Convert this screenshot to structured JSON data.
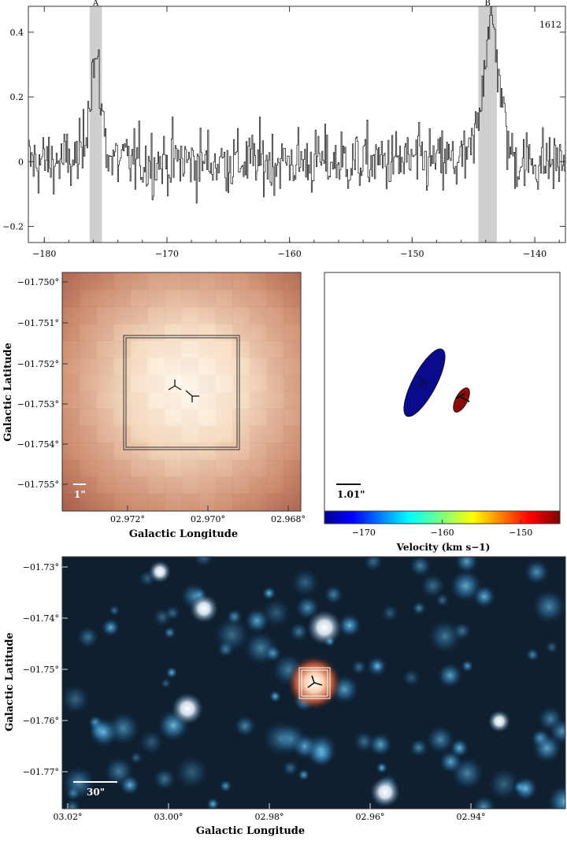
{
  "chart_data": [
    {
      "type": "line",
      "panel": "spectrum",
      "x_ticks": [
        -180,
        -170,
        -160,
        -150,
        -140
      ],
      "y_ticks": [
        0.4,
        0.2,
        0,
        -0.2
      ],
      "xlim": [
        -181.3,
        -137.5
      ],
      "ylim": [
        -0.25,
        0.48
      ],
      "corner_label": "1612",
      "highlights": [
        {
          "label": "A",
          "x_range": [
            -176.3,
            -175.3
          ]
        },
        {
          "label": "B",
          "x_range": [
            -144.6,
            -143.1
          ]
        }
      ],
      "baseline_noise_rms": 0.05,
      "features": [
        {
          "center": -175.9,
          "peak": 0.31,
          "width": 0.5
        },
        {
          "center": -143.6,
          "peak": 0.42,
          "width": 0.7
        }
      ]
    },
    {
      "type": "heatmap",
      "panel": "zoom",
      "xlabel": "Galactic Longitude",
      "ylabel": "Galactic Latitude",
      "x_ticks": [
        "02.972°",
        "02.970°",
        "02.968°"
      ],
      "y_ticks": [
        "−01.750°",
        "−01.751°",
        "−01.752°",
        "−01.753°",
        "−01.754°",
        "−01.755°"
      ],
      "scalebar": "1\""
    },
    {
      "type": "scatter",
      "panel": "velocity",
      "colorbar_label": "Velocity (km s−1)",
      "colorbar_ticks": [
        -170,
        -160,
        -150
      ],
      "colorbar_range": [
        -175,
        -145
      ],
      "scalebar": "1.01\"",
      "features": [
        {
          "velocity": -175.9,
          "color": "#0a0a8c"
        },
        {
          "velocity": -143.6,
          "color": "#8b0a0a"
        }
      ]
    },
    {
      "type": "heatmap",
      "panel": "field",
      "xlabel": "Galactic Longitude",
      "ylabel": "Galactic Latitude",
      "x_ticks": [
        "03.02°",
        "03.00°",
        "02.98°",
        "02.96°",
        "02.94°"
      ],
      "y_ticks": [
        "−01.73°",
        "−01.74°",
        "−01.75°",
        "−01.76°",
        "−01.77°"
      ],
      "scalebar": "30\""
    }
  ]
}
